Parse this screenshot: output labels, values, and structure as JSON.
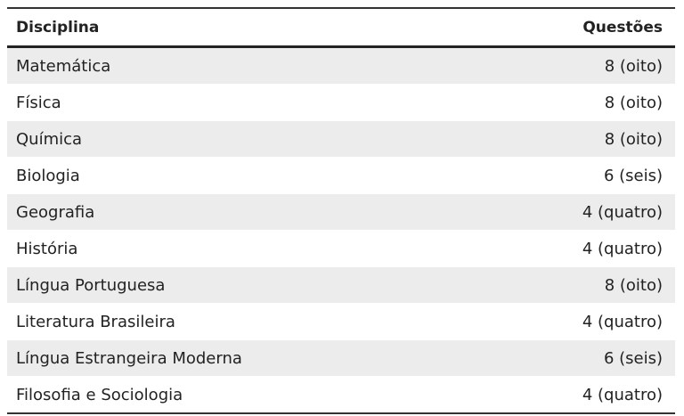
{
  "table": {
    "columns": [
      "Disciplina",
      "Questões"
    ],
    "rows": [
      [
        "Matemática",
        "8 (oito)"
      ],
      [
        "Física",
        "8 (oito)"
      ],
      [
        "Química",
        "8 (oito)"
      ],
      [
        "Biologia",
        "6 (seis)"
      ],
      [
        "Geografia",
        "4 (quatro)"
      ],
      [
        "História",
        "4 (quatro)"
      ],
      [
        "Língua Portuguesa",
        "8 (oito)"
      ],
      [
        "Literatura Brasileira",
        "4 (quatro)"
      ],
      [
        "Língua Estrangeira Moderna",
        "6 (seis)"
      ],
      [
        "Filosofia e Sociologia",
        "4 (quatro)"
      ]
    ]
  }
}
